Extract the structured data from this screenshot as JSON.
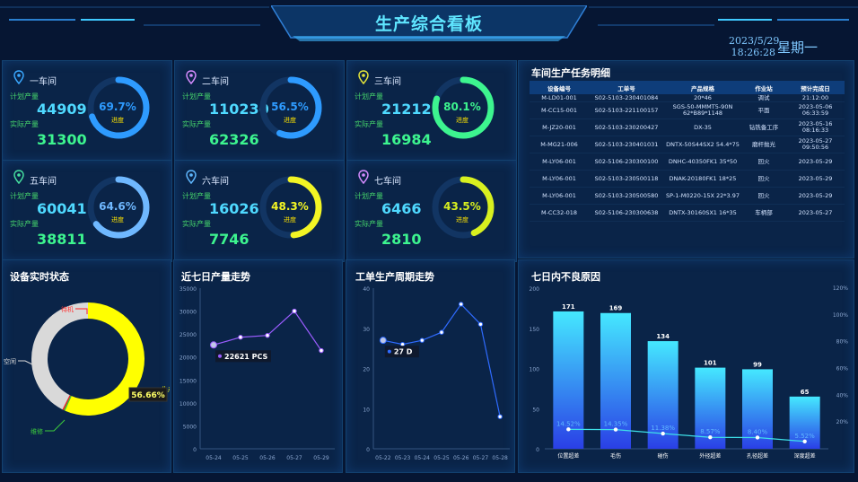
{
  "header": {
    "title": "生产综合看板",
    "date": "2023/5/29",
    "time": "18:26:28",
    "weekday": "星期一"
  },
  "workshops": [
    {
      "name": "一车间",
      "plan_label": "计划产量",
      "plan": "44909",
      "actual_label": "实际产量",
      "actual": "31300",
      "pct": "69.7%",
      "progress": 0.697,
      "progress_label": "进度",
      "color": "#2e9bff",
      "pin": "#3aa8ff"
    },
    {
      "name": "二车间",
      "plan_label": "计划产量",
      "plan": "110230",
      "actual_label": "实际产量",
      "actual": "62326",
      "pct": "56.5%",
      "progress": 0.565,
      "progress_label": "进度",
      "color": "#2e9bff",
      "pin": "#d58cff"
    },
    {
      "name": "三车间",
      "plan_label": "计划产量",
      "plan": "21212",
      "actual_label": "实际产量",
      "actual": "16984",
      "pct": "80.1%",
      "progress": 0.801,
      "progress_label": "进度",
      "color": "#3df58f",
      "pin": "#e5e53a"
    },
    {
      "name": "五车间",
      "plan_label": "计划产量",
      "plan": "60041",
      "actual_label": "实际产量",
      "actual": "38811",
      "pct": "64.6%",
      "progress": 0.646,
      "progress_label": "进度",
      "color": "#6fb8ff",
      "pin": "#46e0a0"
    },
    {
      "name": "六车间",
      "plan_label": "计划产量",
      "plan": "16026",
      "actual_label": "实际产量",
      "actual": "7746",
      "pct": "48.3%",
      "progress": 0.483,
      "progress_label": "进度",
      "color": "#f3f524",
      "pin": "#5fb8ff"
    },
    {
      "name": "七车间",
      "plan_label": "计划产量",
      "plan": "6466",
      "actual_label": "实际产量",
      "actual": "2810",
      "pct": "43.5%",
      "progress": 0.435,
      "progress_label": "进度",
      "color": "#d8f01f",
      "pin": "#d58cff"
    }
  ],
  "tasks": {
    "title": "车间生产任务明细",
    "columns": [
      "设备编号",
      "工单号",
      "产品规格",
      "作业站",
      "预计完成日"
    ],
    "rows": [
      [
        "M-LD01-001",
        "S02-5103-230401084",
        "20*46",
        "调试",
        "21:12:00"
      ],
      [
        "M-CC15-001",
        "S02-5103-221100157",
        "SGS-50-MMMT5-90N 62*B89*1148",
        "平面",
        "2023-05-06 06:33:59"
      ],
      [
        "M-JZ20-001",
        "S02-5103-230200427",
        "DX-35",
        "钻铣备工序",
        "2023-05-16 08:16:33"
      ],
      [
        "M-MG21-006",
        "S02-5103-230401031",
        "DNTX-50S44SX2 54.4*75",
        "磨杆抛光",
        "2023-05-27 09:50:56"
      ],
      [
        "M-LY06-001",
        "S02-5106-230300100",
        "DNHC-40350FK1 35*50",
        "回火",
        "2023-05-29"
      ],
      [
        "M-LY06-001",
        "S02-5103-230500118",
        "DNAK-20180FK1 18*25",
        "回火",
        "2023-05-29"
      ],
      [
        "M-LY06-001",
        "S02-5103-230500580",
        "SP-1-M0220-15X 22*3.97",
        "回火",
        "2023-05-29"
      ],
      [
        "M-CC32-018",
        "S02-5106-230300638",
        "DNTX-30160SX1 16*35",
        "车柄部",
        "2023-05-27"
      ]
    ]
  },
  "panels": {
    "equipment": "设备实时状态",
    "output": "近七日产量走势",
    "cycle": "工单生产周期走势",
    "defects": "七日内不良原因"
  },
  "chart_data": [
    {
      "type": "pie",
      "title": "设备实时状态",
      "labels": [
        "生产",
        "维修",
        "待机",
        "空闲"
      ],
      "values": [
        56.66,
        0.4,
        0.4,
        42.54
      ],
      "colors": [
        "#ffff00",
        "#3ccc3c",
        "#ff2020",
        "#d9d9d9"
      ],
      "label_texts": [
        "生产",
        "维修",
        "待机",
        "空闲"
      ],
      "highlight": "56.66%"
    },
    {
      "type": "line",
      "title": "近七日产量走势",
      "x": [
        "05-24",
        "05-25",
        "05-26",
        "05-27",
        "05-29"
      ],
      "values": [
        22621,
        24300,
        24700,
        30000,
        21400
      ],
      "ylim": [
        0,
        35000
      ],
      "yticks": [
        0,
        5000,
        10000,
        15000,
        20000,
        25000,
        30000,
        35000
      ],
      "tooltip": "22621 PCS"
    },
    {
      "type": "line",
      "title": "工单生产周期走势",
      "x": [
        "05-22",
        "05-23",
        "05-24",
        "05-25",
        "05-26",
        "05-27",
        "05-28"
      ],
      "values": [
        27,
        26,
        27,
        29,
        36,
        31,
        8
      ],
      "ylim": [
        0,
        40
      ],
      "yticks": [
        0,
        10,
        20,
        30,
        40
      ],
      "tooltip": "27 D"
    },
    {
      "type": "bar",
      "title": "七日内不良原因",
      "categories": [
        "位置超差",
        "毛伤",
        "碰伤",
        "外径超差",
        "孔径超差",
        "深度超差"
      ],
      "values": [
        171,
        169,
        134,
        101,
        99,
        65
      ],
      "line_values": [
        14.52,
        14.35,
        11.38,
        8.57,
        8.4,
        5.52
      ],
      "line_labels": [
        "14.52%",
        "14.35%",
        "11.38%",
        "8.57%",
        "8.40%",
        "5.52%"
      ],
      "ylim": [
        0,
        200
      ],
      "yticks": [
        0,
        50,
        100,
        150,
        200
      ],
      "y2ticks": [
        "20%",
        "40%",
        "60%",
        "80%",
        "100%",
        "120%"
      ]
    }
  ]
}
